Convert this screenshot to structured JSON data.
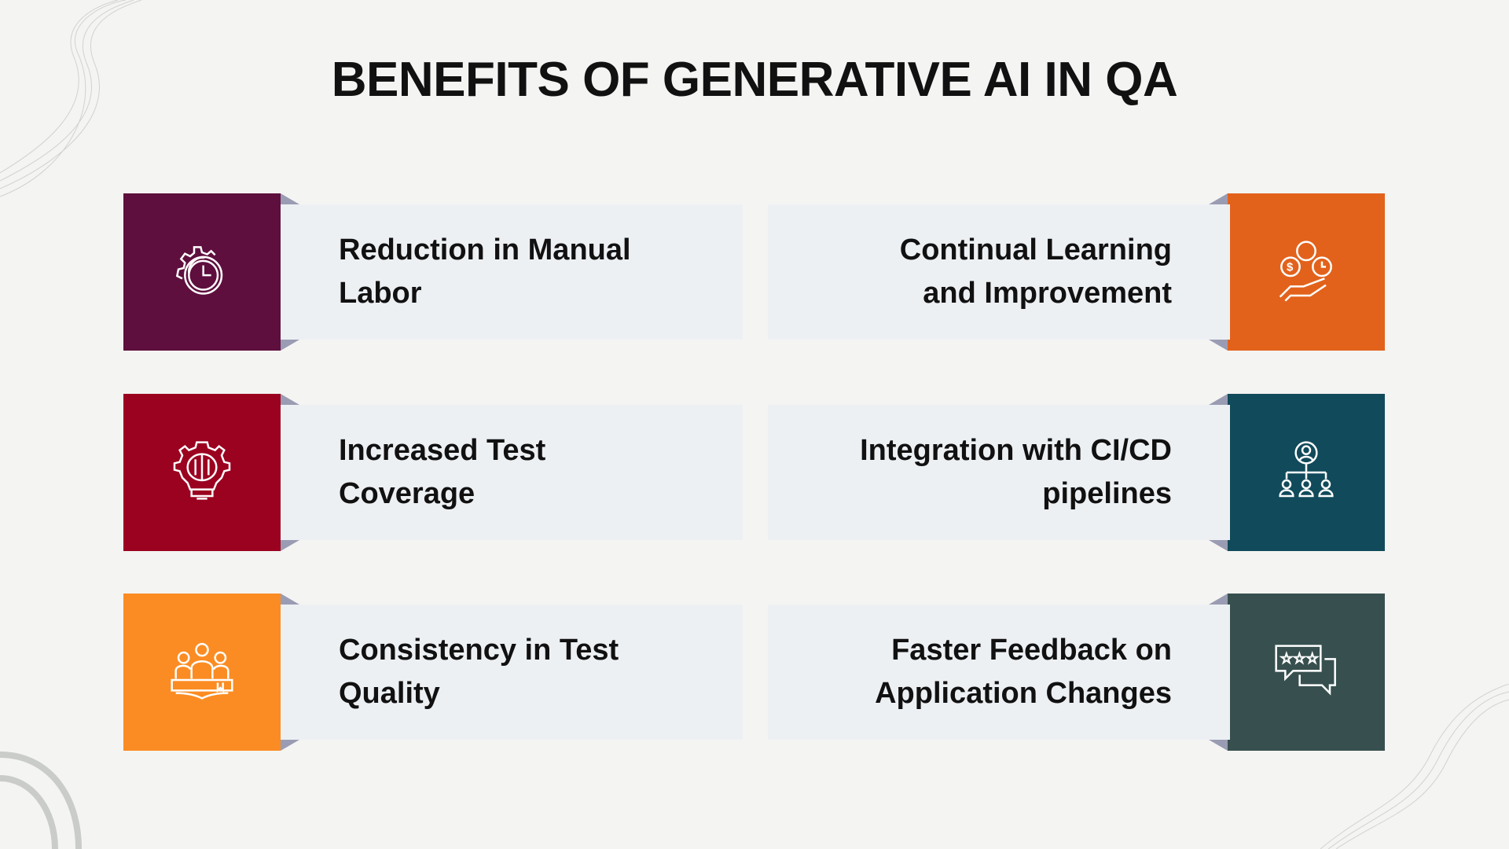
{
  "title": "BENEFITS OF GENERATIVE AI IN QA",
  "items": [
    {
      "label": "Reduction in Manual Labor",
      "icon": "gear-clock-icon",
      "color": "#5e0f3e",
      "side": "left"
    },
    {
      "label": "Continual Learning and Improvement",
      "icon": "hand-money-people-icon",
      "color": "#e2621b",
      "side": "right"
    },
    {
      "label": "Increased Test Coverage",
      "icon": "brain-bulb-gear-icon",
      "color": "#9b0220",
      "side": "left"
    },
    {
      "label": "Integration with CI/CD pipelines",
      "icon": "org-hierarchy-icon",
      "color": "#114a5a",
      "side": "right"
    },
    {
      "label": "Consistency in Test Quality",
      "icon": "group-book-icon",
      "color": "#fb8c23",
      "side": "left"
    },
    {
      "label": "Faster Feedback on Application Changes",
      "icon": "rating-chat-icon",
      "color": "#37504f",
      "side": "right"
    }
  ]
}
